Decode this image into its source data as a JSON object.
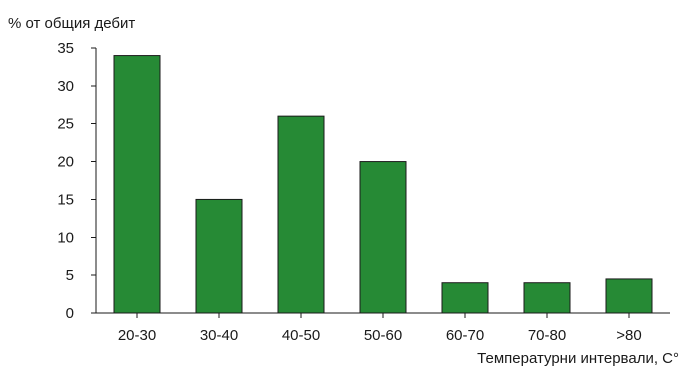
{
  "chart_data": {
    "type": "bar",
    "title": "",
    "ylabel": "% от общия дебит",
    "xlabel": "Температурни интервали, C°",
    "categories": [
      "20-30",
      "30-40",
      "40-50",
      "50-60",
      "60-70",
      "70-80",
      ">80"
    ],
    "values": [
      34,
      15,
      26,
      20,
      4,
      4,
      4.5
    ],
    "ylim": [
      0,
      35
    ],
    "yticks": [
      0,
      5,
      10,
      15,
      20,
      25,
      30,
      35
    ],
    "grid": false,
    "legend": "none",
    "bar_color": "#268a35",
    "axis_color": "#1a1a1a"
  }
}
